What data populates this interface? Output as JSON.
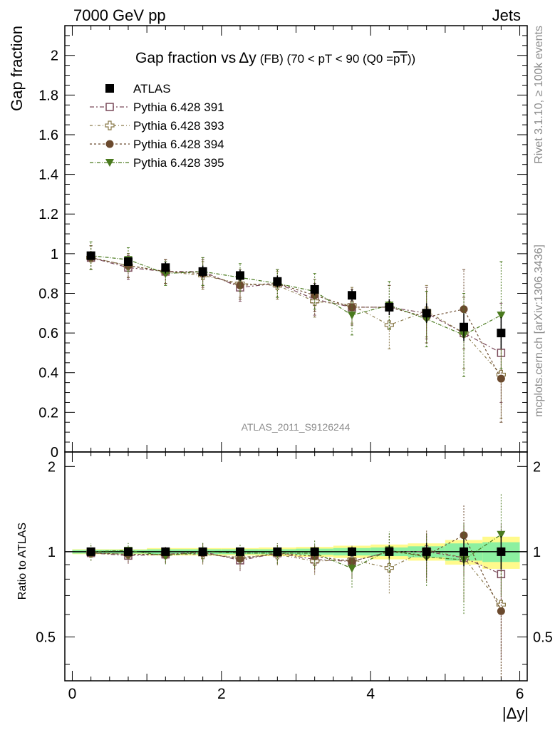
{
  "header": {
    "left": "7000 GeV pp",
    "right": "Jets"
  },
  "side_text": {
    "rivet": "Rivet 3.1.10, ≥ 100k events",
    "mcplots": "mcplots.cern.ch [arXiv:1306.3436]"
  },
  "chart_data": {
    "type": "scatter",
    "title": {
      "main": "Gap fraction vs",
      "symbol": "Δy",
      "sub": "(FB) (70 < pT <  90 (Q0 =",
      "overline": "pT",
      "end": "))"
    },
    "analysis_tag": "ATLAS_2011_S9126244",
    "xlabel": "|Δy|",
    "ylabel": "Gap fraction",
    "ratio_ylabel": "Ratio to ATLAS",
    "xlim": [
      -0.1,
      6.1
    ],
    "ylim": [
      0,
      2.15
    ],
    "ratio_ylim": [
      0.35,
      2.25
    ],
    "x_ticks": [
      "0",
      "2",
      "4",
      "6"
    ],
    "y_ticks": [
      "0",
      "0.2",
      "0.4",
      "0.6",
      "0.8",
      "1",
      "1.2",
      "1.4",
      "1.6",
      "1.8",
      "2"
    ],
    "ratio_y_ticks": [
      "0.5",
      "1",
      "2"
    ],
    "x": [
      0.25,
      0.75,
      1.25,
      1.75,
      2.25,
      2.75,
      3.25,
      3.75,
      4.25,
      4.75,
      5.25,
      5.75
    ],
    "data": {
      "name": "ATLAS",
      "values": [
        0.99,
        0.96,
        0.93,
        0.91,
        0.89,
        0.86,
        0.82,
        0.79,
        0.73,
        0.7,
        0.63,
        0.6
      ],
      "errors": [
        0.02,
        0.02,
        0.03,
        0.03,
        0.03,
        0.03,
        0.03,
        0.03,
        0.04,
        0.05,
        0.07,
        0.08
      ]
    },
    "series": [
      {
        "name": "Pythia 6.428 391",
        "marker": "open-square",
        "color": "#7a4a5a",
        "values": [
          0.98,
          0.93,
          0.91,
          0.91,
          0.83,
          0.85,
          0.77,
          0.73,
          0.73,
          0.7,
          0.6,
          0.5
        ],
        "errors": [
          0.06,
          0.06,
          0.06,
          0.07,
          0.07,
          0.07,
          0.08,
          0.09,
          0.11,
          0.13,
          0.18,
          0.25
        ]
      },
      {
        "name": "Pythia 6.428 393",
        "marker": "open-cross",
        "color": "#8a7a4a",
        "values": [
          0.98,
          0.94,
          0.91,
          0.89,
          0.85,
          0.84,
          0.76,
          0.74,
          0.64,
          0.71,
          0.6,
          0.39
        ],
        "errors": [
          0.06,
          0.06,
          0.06,
          0.07,
          0.07,
          0.07,
          0.08,
          0.09,
          0.12,
          0.13,
          0.18,
          0.22
        ]
      },
      {
        "name": "Pythia 6.428 394",
        "marker": "filled-circle",
        "color": "#6b4a2e",
        "values": [
          0.98,
          0.94,
          0.91,
          0.9,
          0.84,
          0.85,
          0.79,
          0.73,
          0.73,
          0.68,
          0.72,
          0.37
        ],
        "errors": [
          0.06,
          0.06,
          0.06,
          0.07,
          0.07,
          0.07,
          0.08,
          0.09,
          0.11,
          0.13,
          0.2,
          0.22
        ]
      },
      {
        "name": "Pythia 6.428 395",
        "marker": "filled-triangle-down",
        "color": "#4a7a1e",
        "values": [
          0.99,
          0.97,
          0.9,
          0.91,
          0.88,
          0.85,
          0.81,
          0.69,
          0.74,
          0.67,
          0.59,
          0.69
        ],
        "errors": [
          0.07,
          0.06,
          0.06,
          0.07,
          0.07,
          0.07,
          0.09,
          0.1,
          0.12,
          0.14,
          0.21,
          0.27
        ]
      }
    ],
    "ratio_band": {
      "inner_color": "#8cf0a0",
      "outer_color": "#fffa8c",
      "inner": [
        0.015,
        0.015,
        0.02,
        0.02,
        0.02,
        0.02,
        0.025,
        0.03,
        0.035,
        0.045,
        0.07,
        0.08
      ],
      "outer": [
        0.02,
        0.02,
        0.03,
        0.03,
        0.03,
        0.035,
        0.04,
        0.05,
        0.06,
        0.07,
        0.1,
        0.13
      ]
    }
  }
}
